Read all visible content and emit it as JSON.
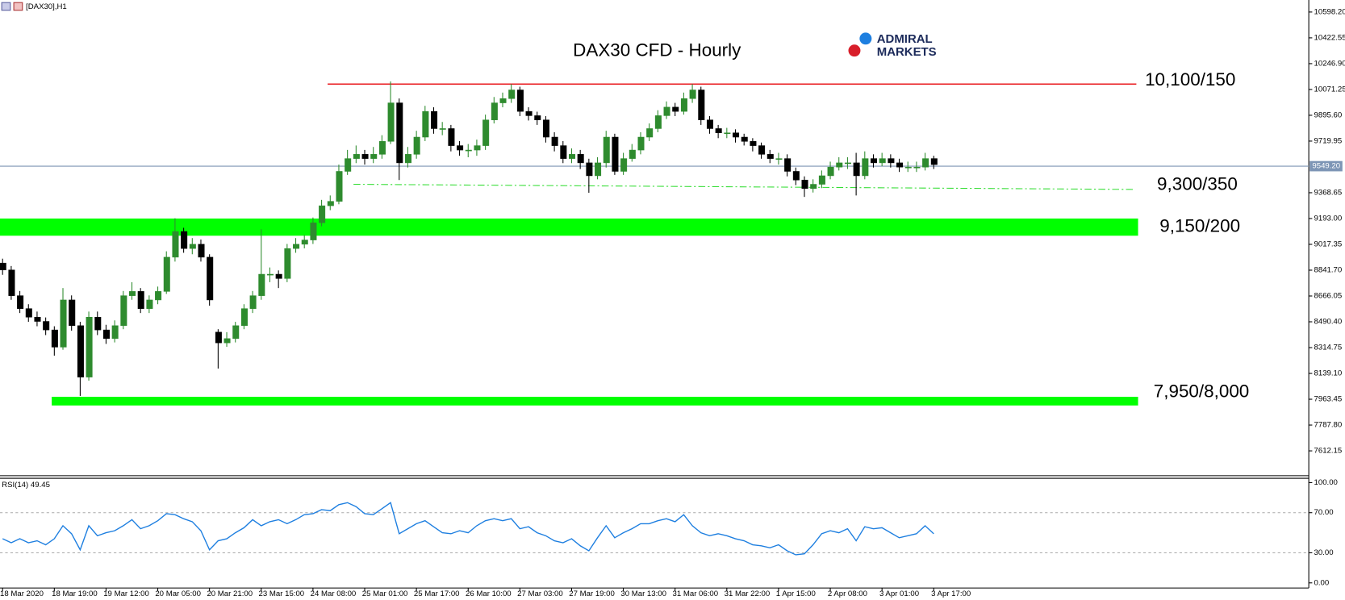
{
  "header": {
    "symbol": "[DAX30],H1"
  },
  "chart_data": [
    {
      "type": "candlestick",
      "title": "DAX30 CFD - Hourly",
      "brand": {
        "line1": "ADMIRAL",
        "line2": "MARKETS"
      },
      "categories": [
        "18 Mar 2020",
        null,
        null,
        null,
        null,
        null,
        "18 Mar 19:00",
        null,
        null,
        null,
        null,
        null,
        "19 Mar 12:00",
        null,
        null,
        null,
        null,
        null,
        "20 Mar 05:00",
        null,
        null,
        null,
        null,
        null,
        "20 Mar 21:00",
        null,
        null,
        null,
        null,
        null,
        "23 Mar 15:00",
        null,
        null,
        null,
        null,
        null,
        "24 Mar 08:00",
        null,
        null,
        null,
        null,
        null,
        "25 Mar 01:00",
        null,
        null,
        null,
        null,
        null,
        "25 Mar 17:00",
        null,
        null,
        null,
        null,
        null,
        "26 Mar 10:00",
        null,
        null,
        null,
        null,
        null,
        "27 Mar 03:00",
        null,
        null,
        null,
        null,
        null,
        "27 Mar 19:00",
        null,
        null,
        null,
        null,
        null,
        "30 Mar 13:00",
        null,
        null,
        null,
        null,
        null,
        "31 Mar 06:00",
        null,
        null,
        null,
        null,
        null,
        "31 Mar 22:00",
        null,
        null,
        null,
        null,
        null,
        "1 Apr 15:00",
        null,
        null,
        null,
        null,
        null,
        "2 Apr 08:00",
        null,
        null,
        null,
        null,
        null,
        "3 Apr 01:00",
        null,
        null,
        null,
        null,
        null,
        "3 Apr 17:00"
      ],
      "open": [
        8890,
        8843,
        8668,
        8580,
        8522,
        8493,
        8435,
        8318,
        8639,
        8464,
        8114,
        8522,
        8435,
        8376,
        8464,
        8668,
        8697,
        8580,
        8639,
        8697,
        8930,
        9105,
        8989,
        9018,
        8930,
        8420,
        8347,
        8376,
        8464,
        8580,
        8668,
        8814,
        8814,
        8785,
        8989,
        9018,
        9047,
        9164,
        9280,
        9310,
        9514,
        9601,
        9630,
        9601,
        9630,
        9718,
        9980,
        9572,
        9630,
        9747,
        9922,
        9805,
        9805,
        9689,
        9659,
        9659,
        9689,
        9864,
        9980,
        10009,
        10068,
        9922,
        9893,
        9864,
        9747,
        9689,
        9601,
        9630,
        9572,
        9484,
        9572,
        9747,
        9514,
        9601,
        9659,
        9747,
        9805,
        9893,
        9951,
        9922,
        10009,
        10068,
        9864,
        9805,
        9776,
        9776,
        9747,
        9718,
        9689,
        9630,
        9601,
        9601,
        9514,
        9455,
        9397,
        9426,
        9484,
        9543,
        9572,
        9572,
        9484,
        9601,
        9572,
        9601,
        9572,
        9543,
        9543,
        9543,
        9601
      ],
      "high": [
        8920,
        8870,
        8700,
        8610,
        8560,
        8520,
        8460,
        8720,
        8670,
        8490,
        8560,
        8560,
        8470,
        8500,
        8700,
        8760,
        8720,
        8670,
        8730,
        8970,
        9195,
        9130,
        9060,
        9050,
        8950,
        8440,
        8420,
        8490,
        8610,
        8700,
        9120,
        8860,
        8840,
        9020,
        9060,
        9080,
        9200,
        9320,
        9350,
        9560,
        9660,
        9690,
        9660,
        9680,
        9760,
        10126,
        10010,
        9680,
        9790,
        9960,
        9950,
        9850,
        9830,
        9720,
        9700,
        9730,
        9900,
        10020,
        10050,
        10108,
        10090,
        9950,
        9920,
        9890,
        9780,
        9720,
        9670,
        9660,
        9600,
        9610,
        9790,
        9770,
        9640,
        9700,
        9780,
        9840,
        9930,
        9990,
        9980,
        10050,
        10108,
        10090,
        9890,
        9830,
        9810,
        9800,
        9770,
        9740,
        9710,
        9660,
        9640,
        9630,
        9540,
        9480,
        9460,
        9520,
        9580,
        9610,
        9610,
        9640,
        9650,
        9630,
        9640,
        9630,
        9600,
        9580,
        9580,
        9640,
        9620
      ],
      "low": [
        8810,
        8640,
        8550,
        8490,
        8460,
        8400,
        8260,
        8300,
        8430,
        7986,
        8090,
        8400,
        8340,
        8350,
        8440,
        8640,
        8550,
        8550,
        8610,
        8680,
        8900,
        8960,
        8950,
        8900,
        8600,
        8172,
        8320,
        8350,
        8440,
        8550,
        8640,
        8760,
        8720,
        8760,
        8960,
        8990,
        9020,
        9140,
        9250,
        9290,
        9490,
        9570,
        9560,
        9570,
        9600,
        9700,
        9455,
        9540,
        9600,
        9720,
        9770,
        9760,
        9650,
        9620,
        9610,
        9620,
        9660,
        9840,
        9950,
        9980,
        9890,
        9860,
        9830,
        9710,
        9650,
        9570,
        9570,
        9530,
        9368,
        9460,
        9540,
        9490,
        9490,
        9580,
        9630,
        9720,
        9780,
        9870,
        9890,
        9900,
        9980,
        9830,
        9770,
        9740,
        9740,
        9710,
        9690,
        9650,
        9600,
        9570,
        9560,
        9480,
        9420,
        9340,
        9370,
        9400,
        9460,
        9520,
        9530,
        9350,
        9460,
        9540,
        9550,
        9540,
        9510,
        9510,
        9510,
        9520,
        9530
      ],
      "close": [
        8843,
        8668,
        8580,
        8522,
        8493,
        8435,
        8318,
        8639,
        8464,
        8114,
        8522,
        8435,
        8376,
        8464,
        8668,
        8697,
        8580,
        8639,
        8697,
        8930,
        9105,
        8989,
        9018,
        8930,
        8639,
        8347,
        8376,
        8464,
        8580,
        8668,
        8814,
        8814,
        8785,
        8989,
        9018,
        9047,
        9164,
        9280,
        9310,
        9514,
        9601,
        9630,
        9601,
        9630,
        9718,
        9980,
        9572,
        9630,
        9747,
        9922,
        9805,
        9805,
        9689,
        9659,
        9659,
        9689,
        9864,
        9980,
        10009,
        10068,
        9922,
        9893,
        9864,
        9747,
        9689,
        9601,
        9630,
        9572,
        9484,
        9572,
        9747,
        9514,
        9601,
        9659,
        9747,
        9805,
        9893,
        9951,
        9922,
        10009,
        10068,
        9864,
        9805,
        9776,
        9776,
        9747,
        9718,
        9689,
        9630,
        9601,
        9601,
        9514,
        9455,
        9397,
        9426,
        9484,
        9543,
        9572,
        9572,
        9484,
        9601,
        9572,
        9601,
        9572,
        9543,
        9543,
        9543,
        9601,
        9560
      ],
      "up_color": "#2e8b2e",
      "down_color": "#000000",
      "ylim": [
        7443,
        10680
      ],
      "yticks": [
        {
          "value": 10598.2,
          "label": "10598.20"
        },
        {
          "value": 10422.55,
          "label": "10422.55"
        },
        {
          "value": 10246.9,
          "label": "10246.90"
        },
        {
          "value": 10071.25,
          "label": "10071.25"
        },
        {
          "value": 9895.6,
          "label": "9895.60"
        },
        {
          "value": 9719.95,
          "label": "9719.95"
        },
        {
          "value": 9368.65,
          "label": "9368.65"
        },
        {
          "value": 9193,
          "label": "9193.00"
        },
        {
          "value": 9017.35,
          "label": "9017.35"
        },
        {
          "value": 8841.7,
          "label": "8841.70"
        },
        {
          "value": 8666.05,
          "label": "8666.05"
        },
        {
          "value": 8490.4,
          "label": "8490.40"
        },
        {
          "value": 8314.75,
          "label": "8314.75"
        },
        {
          "value": 8139.1,
          "label": "8139.10"
        },
        {
          "value": 7963.45,
          "label": "7963.45"
        },
        {
          "value": 7787.8,
          "label": "7787.80"
        },
        {
          "value": 7612.15,
          "label": "7612.15"
        }
      ],
      "current_price": {
        "value": 9549.2,
        "label": "9549.20",
        "color": "#7d95b5"
      },
      "levels": [
        {
          "label": "10,100/150",
          "style": "line",
          "value": 10108,
          "color": "#e8191e"
        },
        {
          "label": "9,300/350",
          "style": "dash-dot",
          "values": [
            9426,
            9391
          ],
          "color": "#33dd33"
        },
        {
          "label": "9,150/200",
          "style": "band",
          "values": [
            9076,
            9193
          ],
          "color": "#00ff00"
        },
        {
          "label": "7,950/8,000",
          "style": "band",
          "values": [
            7921,
            7980
          ],
          "color": "#00ff00"
        }
      ]
    },
    {
      "type": "line",
      "label": "RSI(14) 49.45",
      "values": [
        44,
        40,
        44,
        40,
        42,
        38,
        44,
        57,
        49,
        33,
        57,
        47,
        50,
        52,
        57,
        63,
        54,
        57,
        62,
        69,
        68,
        64,
        61,
        52,
        33,
        42,
        44,
        50,
        55,
        63,
        57,
        61,
        63,
        59,
        63,
        68,
        69,
        73,
        72,
        78,
        80,
        76,
        69,
        68,
        74,
        80,
        49,
        54,
        59,
        62,
        56,
        50,
        49,
        52,
        50,
        57,
        62,
        64,
        62,
        64,
        54,
        56,
        50,
        47,
        42,
        40,
        44,
        37,
        32,
        45,
        57,
        45,
        50,
        54,
        59,
        59,
        62,
        64,
        61,
        68,
        57,
        50,
        47,
        49,
        47,
        44,
        42,
        38,
        37,
        35,
        38,
        32,
        28,
        29,
        38,
        49,
        52,
        50,
        54,
        42,
        56,
        54,
        55,
        50,
        45,
        47,
        49,
        57,
        49
      ],
      "color": "#1e7fe0",
      "ylim": [
        -5.1,
        104.3
      ],
      "yticks": [
        {
          "value": 100,
          "label": "100.00"
        },
        {
          "value": 70,
          "label": "70.00"
        },
        {
          "value": 30,
          "label": "30.00"
        },
        {
          "value": 0,
          "label": "0.00"
        }
      ],
      "level_lines": [
        70,
        30
      ]
    }
  ]
}
